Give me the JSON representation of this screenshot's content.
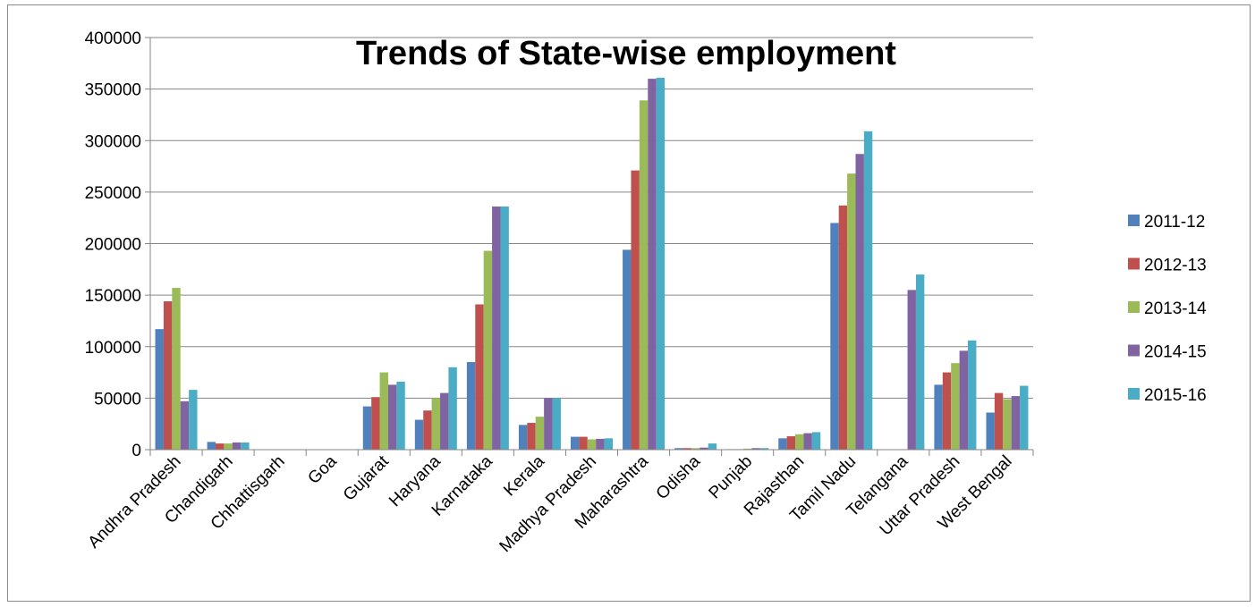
{
  "chart_data": {
    "type": "bar",
    "title": "Trends of State-wise employment",
    "xlabel": "",
    "ylabel": "",
    "ylim": [
      0,
      400000
    ],
    "yticks": [
      "0",
      "50000",
      "100000",
      "150000",
      "200000",
      "250000",
      "300000",
      "350000",
      "400000"
    ],
    "grid": true,
    "legend_position": "right",
    "categories": [
      "Andhra Pradesh",
      "Chandigarh",
      "Chhattisgarh",
      "Goa",
      "Gujarat",
      "Haryana",
      "Karnataka",
      "Kerala",
      "Madhya Pradesh",
      "Maharashtra",
      "Odisha",
      "Punjab",
      "Rajasthan",
      "Tamil Nadu",
      "Telangana",
      "Uttar Pradesh",
      "West Bengal"
    ],
    "series": [
      {
        "name": "2011-12",
        "color": "#4F81BD",
        "values": [
          117000,
          7500,
          0,
          0,
          42000,
          29000,
          85000,
          24000,
          12500,
          194000,
          1500,
          500,
          11000,
          220000,
          0,
          63000,
          36000
        ]
      },
      {
        "name": "2012-13",
        "color": "#C0504D",
        "values": [
          144000,
          6000,
          0,
          0,
          51000,
          38000,
          141000,
          26000,
          12500,
          271000,
          1500,
          500,
          13000,
          237000,
          0,
          75000,
          55000
        ]
      },
      {
        "name": "2013-14",
        "color": "#9BBB59",
        "values": [
          157000,
          6000,
          0,
          0,
          75000,
          50000,
          193000,
          32000,
          10000,
          339000,
          1500,
          1000,
          15000,
          268000,
          0,
          84000,
          49000
        ]
      },
      {
        "name": "2014-15",
        "color": "#8064A2",
        "values": [
          47000,
          7000,
          0,
          0,
          63000,
          55000,
          236000,
          50000,
          10500,
          360000,
          2000,
          1500,
          16000,
          287000,
          155000,
          96000,
          52000
        ]
      },
      {
        "name": "2015-16",
        "color": "#4BACC6",
        "values": [
          58000,
          7000,
          0,
          0,
          66000,
          80000,
          236000,
          50000,
          11000,
          361000,
          6000,
          1500,
          17000,
          309000,
          170000,
          106000,
          62000
        ]
      }
    ]
  }
}
